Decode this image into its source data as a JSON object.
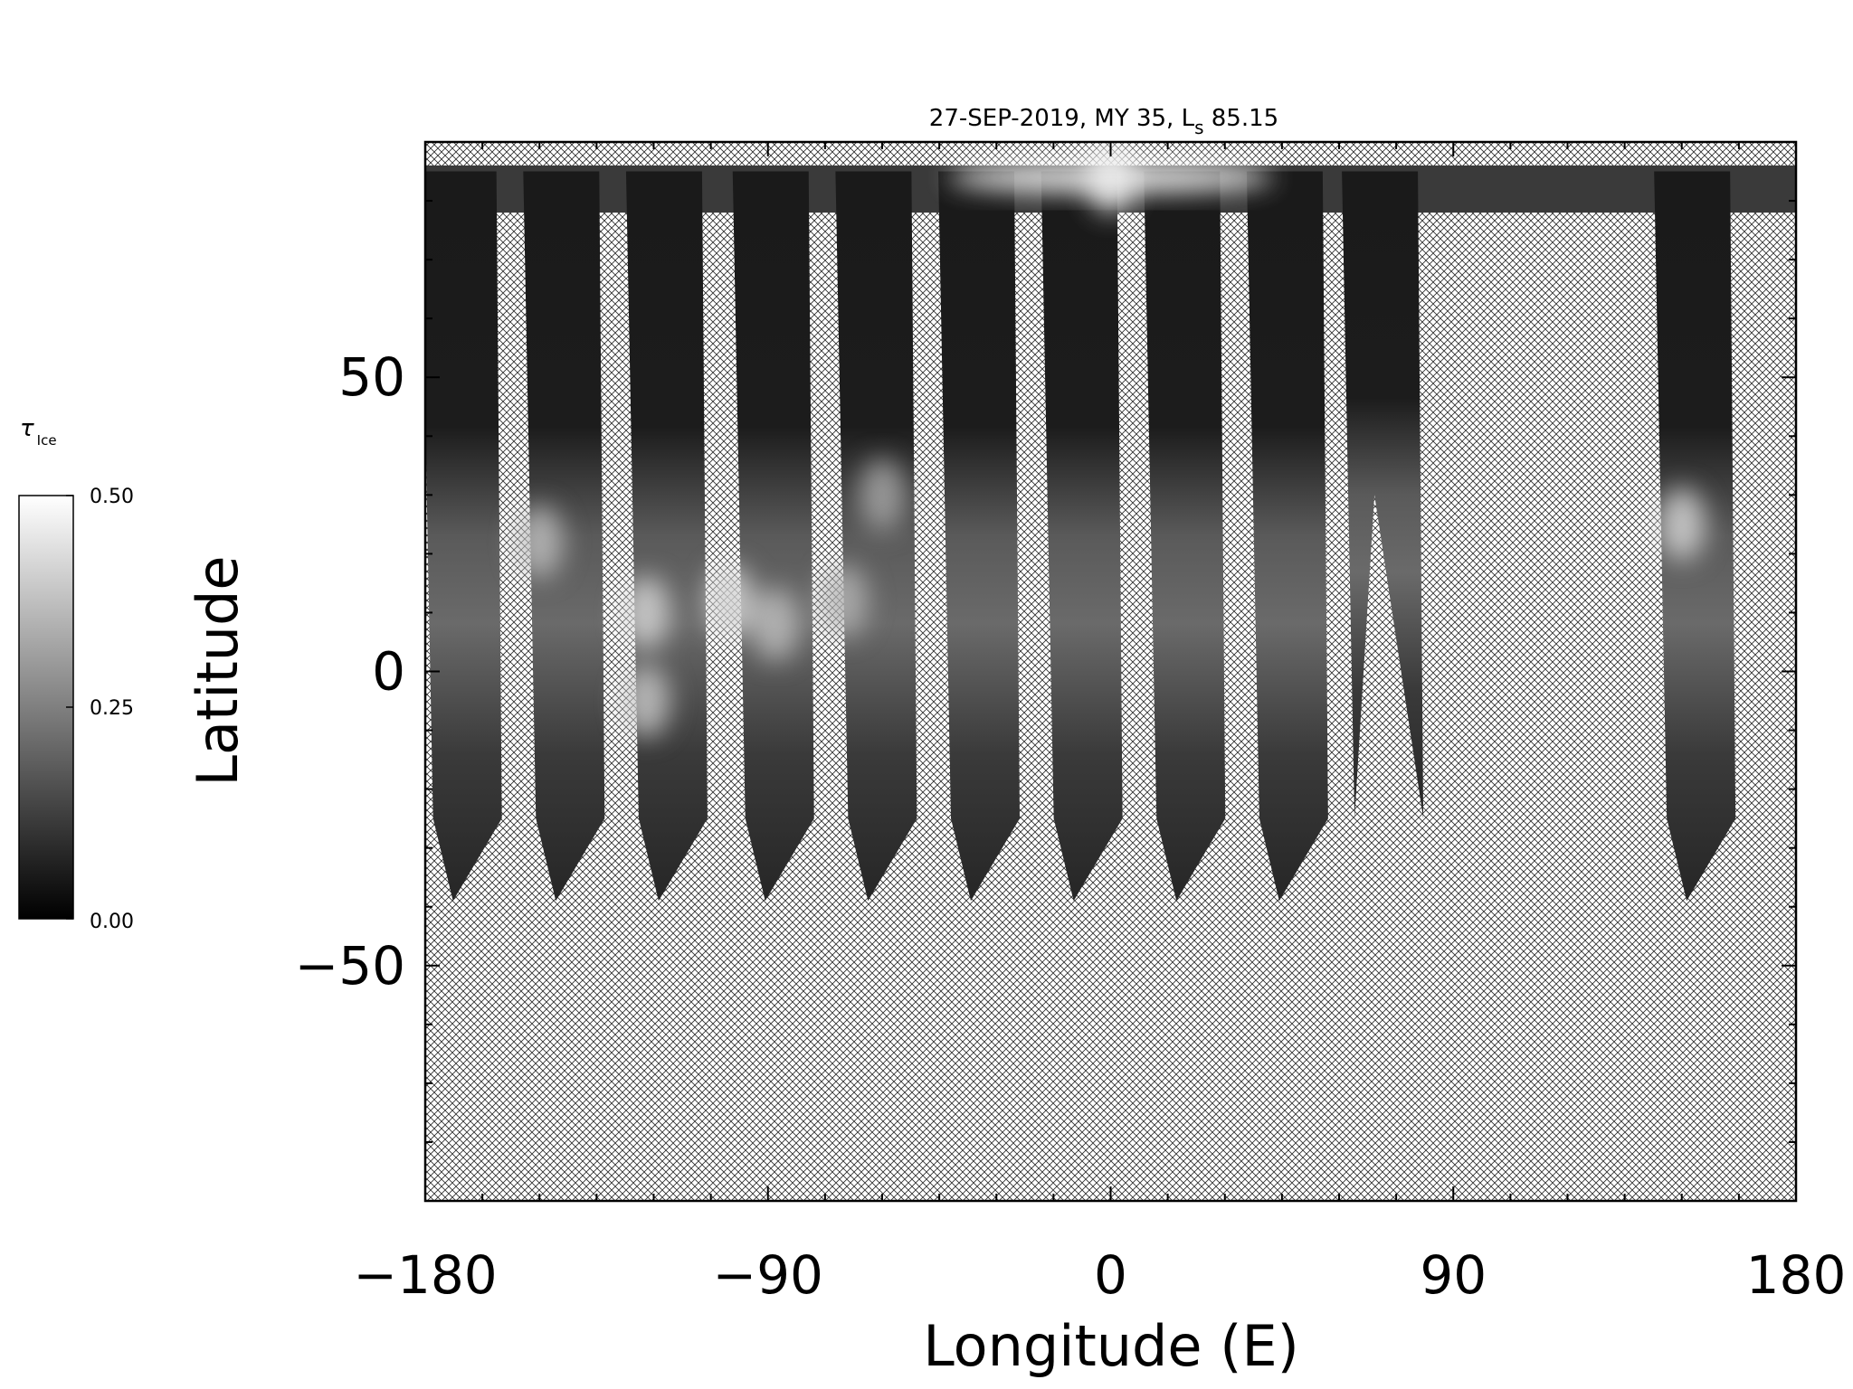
{
  "chart_data": {
    "type": "heatmap",
    "title": "27-SEP-2019, MY 35,  L",
    "title_subscript": "s",
    "title_suffix": " 85.15",
    "xlabel": "Longitude (E)",
    "ylabel": "Latitude",
    "xlim": [
      -180,
      180
    ],
    "ylim": [
      -90,
      90
    ],
    "x_ticks": [
      -180,
      -90,
      0,
      90,
      180
    ],
    "x_tick_labels": [
      "−180",
      "−90",
      "0",
      "90",
      "180"
    ],
    "y_ticks": [
      -50,
      0,
      50
    ],
    "y_tick_labels": [
      "−50",
      "0",
      "50"
    ],
    "no_data_pattern": "crosshatch",
    "colorbar": {
      "label": "τ",
      "label_subscript": "Ice",
      "range": [
        0.0,
        0.5
      ],
      "colormap": "grayscale",
      "tick_values": [
        0.0,
        0.25,
        0.5
      ],
      "tick_labels": [
        "0.00",
        "0.25",
        "0.50"
      ]
    },
    "swaths": [
      {
        "center_lon": -172,
        "lat_min": -39,
        "lat_max": 85
      },
      {
        "center_lon": -145,
        "lat_min": -39,
        "lat_max": 85
      },
      {
        "center_lon": -118,
        "lat_min": -39,
        "lat_max": 85
      },
      {
        "center_lon": -90,
        "lat_min": -39,
        "lat_max": 85
      },
      {
        "center_lon": -63,
        "lat_min": -39,
        "lat_max": 85
      },
      {
        "center_lon": -36,
        "lat_min": -39,
        "lat_max": 85
      },
      {
        "center_lon": -9,
        "lat_min": -39,
        "lat_max": 85
      },
      {
        "center_lon": 18,
        "lat_min": -39,
        "lat_max": 85
      },
      {
        "center_lon": 45,
        "lat_min": -39,
        "lat_max": 85
      },
      {
        "center_lon": 70,
        "lat_min": 30,
        "lat_max": 85
      },
      {
        "center_lon": 152,
        "lat_min": -39,
        "lat_max": 85
      }
    ],
    "bright_regions": [
      {
        "lon": -150,
        "lat": 22,
        "tau": 0.4
      },
      {
        "lon": -122,
        "lat": 10,
        "tau": 0.45
      },
      {
        "lon": -122,
        "lat": -5,
        "tau": 0.42
      },
      {
        "lon": -100,
        "lat": 12,
        "tau": 0.45
      },
      {
        "lon": -88,
        "lat": 8,
        "tau": 0.4
      },
      {
        "lon": -70,
        "lat": 12,
        "tau": 0.38
      },
      {
        "lon": -60,
        "lat": 30,
        "tau": 0.35
      },
      {
        "lon": 0,
        "lat": 84,
        "tau": 0.5
      },
      {
        "lon": 150,
        "lat": 25,
        "tau": 0.45
      }
    ]
  }
}
